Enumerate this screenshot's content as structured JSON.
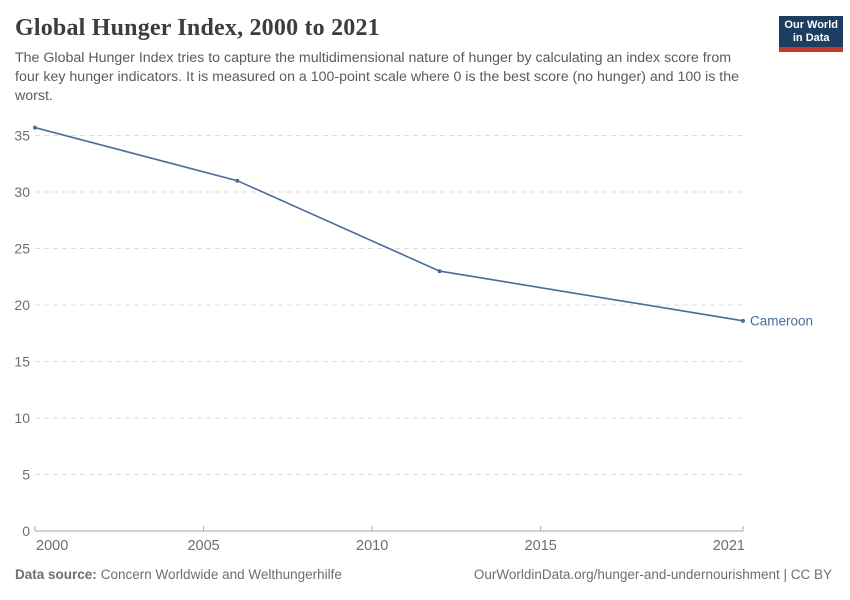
{
  "header": {
    "title": "Global Hunger Index, 2000 to 2021",
    "subtitle": "The Global Hunger Index tries to capture the multidimensional nature of hunger by calculating an index score from four key hunger indicators. It is measured on a 100-point scale where 0 is the best score (no hunger) and 100 is the worst.",
    "logo": {
      "line1": "Our World",
      "line2": "in Data",
      "bg_color": "#1d3d63",
      "accent_color": "#c0392b"
    }
  },
  "chart_data": {
    "type": "line",
    "title": "Global Hunger Index, 2000 to 2021",
    "x": [
      2000,
      2006,
      2012,
      2021
    ],
    "series": [
      {
        "name": "Cameroon",
        "color": "#4C6A9C",
        "values": [
          35.7,
          31.0,
          23.0,
          18.6
        ]
      }
    ],
    "x_ticks": [
      2000,
      2005,
      2010,
      2015,
      2021
    ],
    "y_ticks": [
      0,
      5,
      10,
      15,
      20,
      25,
      30,
      35
    ],
    "xlim": [
      2000,
      2021
    ],
    "ylim": [
      0,
      36
    ],
    "grid": true,
    "legend_position": "end-of-line-label",
    "grid_color": "#dddddd",
    "axis_color": "#a5a5a5",
    "tick_label_color": "#6e6e6e"
  },
  "footer": {
    "datasource_label": "Data source:",
    "datasource_value": "Concern Worldwide and Welthungerhilfe",
    "attribution": "OurWorldinData.org/hunger-and-undernourishment | CC BY"
  }
}
